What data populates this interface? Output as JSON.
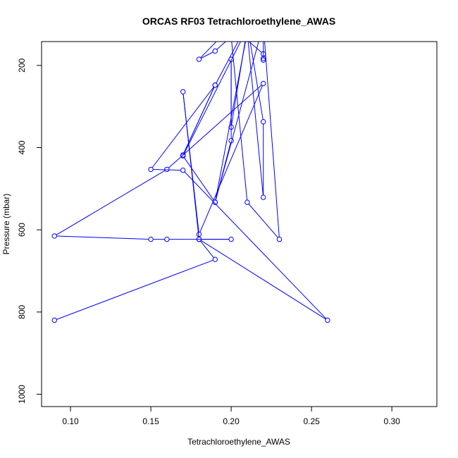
{
  "chart_data": {
    "type": "line",
    "title": "ORCAS RF03 Tetrachloroethylene_AWAS",
    "xlabel": "Tetrachloroethylene_AWAS",
    "ylabel": "Pressure (mbar)",
    "xlim": [
      0.082,
      0.328
    ],
    "ylim": [
      1030,
      142
    ],
    "y_inverted": true,
    "x_ticks": [
      0.1,
      0.15,
      0.2,
      0.25,
      0.3
    ],
    "x_tick_labels": [
      "0.10",
      "0.15",
      "0.20",
      "0.25",
      "0.30"
    ],
    "y_ticks": [
      200,
      400,
      600,
      800,
      1000
    ],
    "y_tick_labels": [
      "200",
      "400",
      "600",
      "800",
      "1000"
    ],
    "grid": false,
    "marker": "open-circle",
    "series_color": "#0000ff",
    "series": [
      {
        "points": [
          [
            0.09,
            820
          ],
          [
            0.19,
            672
          ],
          [
            0.18,
            623
          ],
          [
            0.2,
            623
          ],
          [
            0.16,
            623
          ],
          [
            0.15,
            623
          ],
          [
            0.09,
            615
          ],
          [
            0.16,
            453
          ],
          [
            0.22,
            244
          ],
          [
            0.18,
            611
          ],
          [
            0.17,
            264
          ],
          [
            0.18,
            623
          ],
          [
            0.26,
            820
          ],
          [
            0.17,
            455
          ],
          [
            0.15,
            453
          ],
          [
            0.19,
            248
          ],
          [
            0.17,
            418
          ],
          [
            0.19,
            248
          ],
          [
            0.21,
            100
          ],
          [
            0.22,
            337
          ],
          [
            0.22,
            521
          ],
          [
            0.21,
            120
          ],
          [
            0.19,
            533
          ],
          [
            0.17,
            420
          ],
          [
            0.21,
            110
          ],
          [
            0.2,
            350
          ],
          [
            0.2,
            185
          ],
          [
            0.2,
            383
          ],
          [
            0.19,
            533
          ],
          [
            0.22,
            100
          ],
          [
            0.23,
            623
          ],
          [
            0.21,
            533
          ],
          [
            0.2,
            130
          ],
          [
            0.19,
            165
          ],
          [
            0.18,
            185
          ],
          [
            0.2,
            105
          ],
          [
            0.22,
            172
          ],
          [
            0.22,
            187
          ],
          [
            0.22,
            183
          ],
          [
            0.22,
            110
          ]
        ]
      }
    ]
  }
}
